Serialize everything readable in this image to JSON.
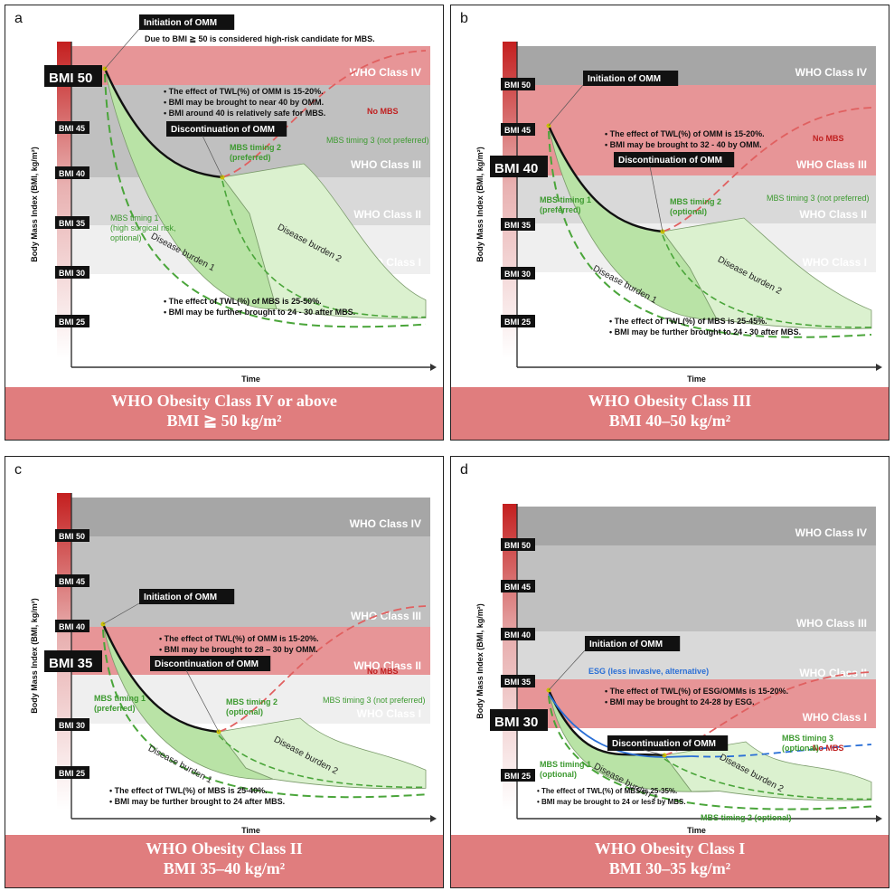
{
  "panels": [
    {
      "letter": "a",
      "footer_line1": "WHO Obesity Class IV or above",
      "footer_line2": "BMI ≧ 50 kg/m²",
      "axis_ylabel": "Body Mass Index (BMI, kg/m²)",
      "axis_xlabel": "Time",
      "bmi_ticks": [
        "BMI 45",
        "BMI 40",
        "BMI 35",
        "BMI 30",
        "BMI 25"
      ],
      "big_bmi": "BMI 50",
      "classes": [
        "WHO Class IV",
        "WHO Class III",
        "WHO Class II",
        "WHO Class I"
      ],
      "initiation": "Initiation of OMM",
      "initiation_note": "Due to BMI ≧ 50 is considered high-risk candidate for MBS.",
      "omm_notes": [
        "The effect of TWL(%) of OMM is 15-20%.",
        "BMI may be brought to near 40 by OMM.",
        "BMI around 40 is relatively safe for MBS."
      ],
      "discontinuation": "Discontinuation of OMM",
      "no_mbs": "No MBS",
      "timing1": [
        "MBS timing 1",
        "(high surgical risk,",
        "optional)"
      ],
      "timing2": [
        "MBS timing 2",
        "(preferred)"
      ],
      "timing3": "MBS timing 3 (not preferred)",
      "burden1": "Disease burden 1",
      "burden2": "Disease burden 2",
      "mbs_notes": [
        "The effect of TWL(%) of MBS is 25-50%.",
        "BMI may be further brought to 24 - 30 after MBS."
      ]
    },
    {
      "letter": "b",
      "footer_line1": "WHO Obesity Class III",
      "footer_line2": "BMI 40–50 kg/m²",
      "axis_ylabel": "Body Mass Index (BMI, kg/m²)",
      "axis_xlabel": "Time",
      "bmi_ticks": [
        "BMI 50",
        "BMI 45",
        "BMI 35",
        "BMI 30",
        "BMI 25"
      ],
      "big_bmi": "BMI 40",
      "classes": [
        "WHO Class IV",
        "WHO Class III",
        "WHO Class II",
        "WHO Class I"
      ],
      "initiation": "Initiation of OMM",
      "omm_notes": [
        "The effect of TWL(%) of OMM is 15-20%.",
        "BMI may be brought to 32 - 40 by OMM."
      ],
      "discontinuation": "Discontinuation of OMM",
      "no_mbs": "No MBS",
      "timing1": [
        "MBS timing 1",
        "(preferred)"
      ],
      "timing2": [
        "MBS timing 2",
        "(optional)"
      ],
      "timing3": "MBS timing 3 (not preferred)",
      "burden1": "Disease burden 1",
      "burden2": "Disease burden 2",
      "mbs_notes": [
        "The effect of TWL(%) of MBS is 25-45%.",
        "BMI may be further brought to 24 - 30 after MBS."
      ]
    },
    {
      "letter": "c",
      "footer_line1": "WHO Obesity Class II",
      "footer_line2": "BMI 35–40 kg/m²",
      "axis_ylabel": "Body Mass Index (BMI, kg/m²)",
      "axis_xlabel": "Time",
      "bmi_ticks": [
        "BMI 50",
        "BMI 45",
        "BMI 40",
        "BMI 30",
        "BMI 25"
      ],
      "big_bmi": "BMI 35",
      "classes": [
        "WHO Class IV",
        "WHO Class III",
        "WHO Class II",
        "WHO Class I"
      ],
      "initiation": "Initiation of OMM",
      "omm_notes": [
        "The effect of TWL(%) of OMM is 15-20%.",
        "BMI may be brought to 28 – 30 by OMM."
      ],
      "discontinuation": "Discontinuation of OMM",
      "no_mbs": "No MBS",
      "timing1": [
        "MBS timing 1",
        "(preferred)"
      ],
      "timing2": [
        "MBS timing 2",
        "(optional)"
      ],
      "timing3": "MBS timing 3 (not preferred)",
      "burden1": "Disease burden 1",
      "burden2": "Disease burden 2",
      "mbs_notes": [
        "The effect of TWL(%) of MBS is 25-40%.",
        "BMI may be further brought to 24 after MBS."
      ]
    },
    {
      "letter": "d",
      "footer_line1": "WHO Obesity Class I",
      "footer_line2": "BMI 30–35 kg/m²",
      "axis_ylabel": "Body Mass Index (BMI, kg/m²)",
      "axis_xlabel": "Time",
      "bmi_ticks": [
        "BMI 50",
        "BMI 45",
        "BMI 40",
        "BMI 35",
        "BMI 25"
      ],
      "big_bmi": "BMI 30",
      "classes": [
        "WHO Class IV",
        "WHO Class III",
        "WHO Class II",
        "WHO Class I"
      ],
      "initiation": "Initiation of OMM",
      "esg": "ESG (less invasive, alternative)",
      "omm_notes": [
        "The effect of TWL(%) of ESG/OMMs is 15-20%.",
        "BMI may be brought to 24-28 by ESG."
      ],
      "discontinuation": "Discontinuation of OMM",
      "no_mbs": "No MBS",
      "timing1": [
        "MBS timing 1",
        "(optional)"
      ],
      "timing2": [
        "MBS timing 2 (optional)"
      ],
      "timing3": [
        "MBS timing 3",
        "(optional)"
      ],
      "burden1": "Disease burden 1",
      "burden2": "Disease burden 2",
      "mbs_notes": [
        "The effect of TWL(%) of MBS is 25-35%.",
        "BMI may be brought to 24 or less by MBS."
      ]
    }
  ],
  "colors": {
    "class4": "#a6a6a6",
    "class3_grey": "#c0c0c0",
    "class2": "#d9d9d9",
    "class1": "#efefef",
    "highlight": "#e79597",
    "footer": "#e07d7e",
    "burden1": "#b9e3a6",
    "burden2": "#dbf1cf",
    "green_dash": "#4aa53a",
    "red_dash": "#e06060",
    "esg_blue": "#2a6fd6"
  }
}
